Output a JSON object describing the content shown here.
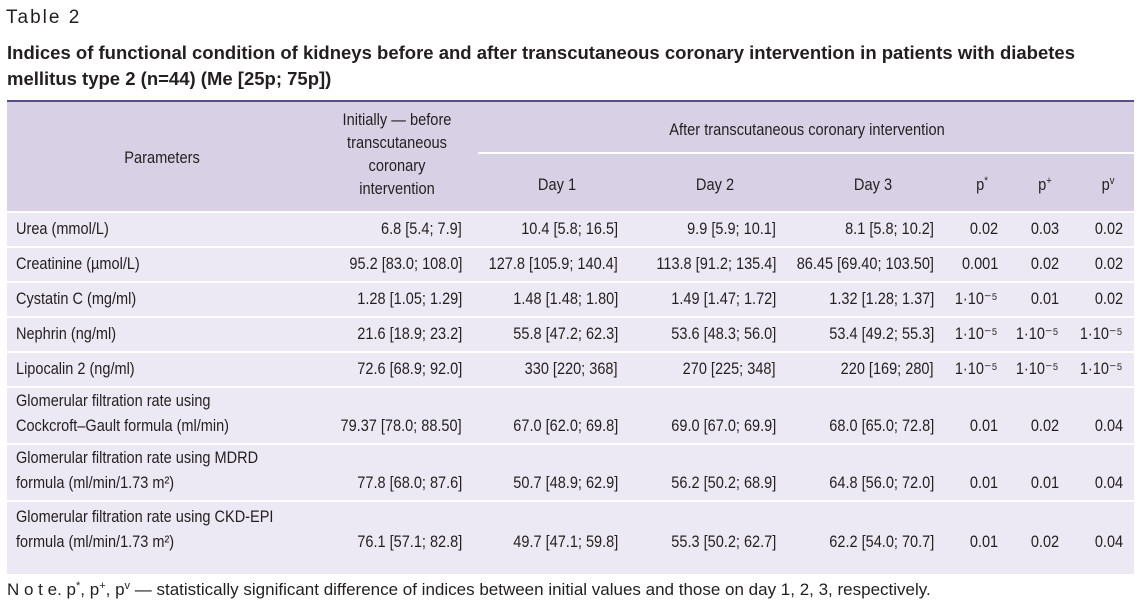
{
  "table_label": "Table 2",
  "caption": "Indices of functional condition of kidneys before and after transcutaneous coronary intervention in patients with diabetes mellitus type 2 (n=44) (Me [25p; 75p])",
  "header": {
    "parameters": "Parameters",
    "initially": [
      "Initially — before",
      "transcutaneous",
      "coronary",
      "intervention"
    ],
    "after": "After transcutaneous coronary intervention",
    "day1": "Day 1",
    "day2": "Day 2",
    "day3": "Day 3",
    "p1_base": "p",
    "p1_sup": "*",
    "p2_base": "p",
    "p2_sup": "+",
    "p3_base": "p",
    "p3_sup": "v"
  },
  "rows": [
    {
      "param": [
        "Urea (mmol/L)"
      ],
      "initial": "6.8 [5.4; 7.9]",
      "day1": "10.4 [5.8; 16.5]",
      "day2": "9.9 [5.9; 10.1]",
      "day3": "8.1 [5.8; 10.2]",
      "p1": "0.02",
      "p2": "0.03",
      "p3": "0.02"
    },
    {
      "param": [
        "Creatinine (µmol/L)"
      ],
      "initial": "95.2 [83.0; 108.0]",
      "day1": "127.8 [105.9; 140.4]",
      "day2": "113.8 [91.2; 135.4]",
      "day3": "86.45 [69.40; 103.50]",
      "p1": "0.001",
      "p2": "0.02",
      "p3": "0.02"
    },
    {
      "param": [
        "Cystatin C (mg/ml)"
      ],
      "initial": "1.28 [1.05; 1.29]",
      "day1": "1.48 [1.48; 1.80]",
      "day2": "1.49 [1.47; 1.72]",
      "day3": "1.32 [1.28; 1.37]",
      "p1": "1·10⁻⁵",
      "p2": "0.01",
      "p3": "0.02"
    },
    {
      "param": [
        "Nephrin (ng/ml)"
      ],
      "initial": "21.6 [18.9; 23.2]",
      "day1": "55.8 [47.2; 62.3]",
      "day2": "53.6 [48.3; 56.0]",
      "day3": "53.4 [49.2; 55.3]",
      "p1": "1·10⁻⁵",
      "p2": "1·10⁻⁵",
      "p3": "1·10⁻⁵"
    },
    {
      "param": [
        "Lipocalin 2 (ng/ml)"
      ],
      "initial": "72.6 [68.9; 92.0]",
      "day1": "330 [220; 368]",
      "day2": "270 [225; 348]",
      "day3": "220 [169; 280]",
      "p1": "1·10⁻⁵",
      "p2": "1·10⁻⁵",
      "p3": "1·10⁻⁵"
    },
    {
      "param": [
        "Glomerular filtration rate using",
        "Cockcroft–Gault formula (ml/min)"
      ],
      "initial": "79.37 [78.0; 88.50]",
      "day1": "67.0 [62.0; 69.8]",
      "day2": "69.0 [67.0; 69.9]",
      "day3": "68.0 [65.0; 72.8]",
      "p1": "0.01",
      "p2": "0.02",
      "p3": "0.04"
    },
    {
      "param": [
        "Glomerular filtration rate using MDRD",
        "formula (ml/min/1.73 m²)"
      ],
      "initial": "77.8 [68.0; 87.6]",
      "day1": "50.7 [48.9; 62.9]",
      "day2": "56.2 [50.2; 68.9]",
      "day3": "64.8 [56.0; 72.0]",
      "p1": "0.01",
      "p2": "0.01",
      "p3": "0.04"
    },
    {
      "param": [
        "Glomerular filtration rate using CKD-EPI",
        "formula (ml/min/1.73 m²)"
      ],
      "initial": "76.1 [57.1; 82.8]",
      "day1": "49.7 [47.1; 59.8]",
      "day2": "55.3 [50.2; 62.7]",
      "day3": "62.2 [54.0; 70.7]",
      "p1": "0.01",
      "p2": "0.02",
      "p3": "0.04"
    }
  ],
  "note": {
    "lead": "N o t e.",
    "text_a": " p",
    "sup_a": "*",
    "text_b": ", p",
    "sup_b": "+",
    "text_c": ", p",
    "sup_c": "v",
    "text_d": " — statistically significant difference of indices between initial values and those on day 1, 2, 3, respectively."
  },
  "colors": {
    "header_bg": "#d8d1e6",
    "row_bg": "#ede9f4",
    "rule": "#5c4a8a"
  }
}
